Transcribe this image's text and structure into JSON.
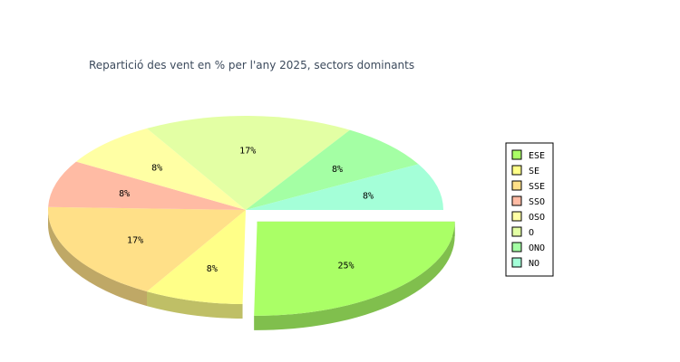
{
  "chart_data": {
    "type": "pie",
    "title": "Repartició des vent en % per l'any 2025, sectors dominants",
    "categories": [
      "ESE",
      "SE",
      "SSE",
      "SSO",
      "OSO",
      "O",
      "ONO",
      "NO"
    ],
    "values": [
      25,
      8,
      17,
      8,
      8,
      17,
      8,
      8
    ],
    "data_labels": [
      "25%",
      "8%",
      "17%",
      "8%",
      "8%",
      "17%",
      "8%",
      "8%"
    ],
    "colors": [
      "#aaff66",
      "#ffff88",
      "#ffe088",
      "#ffbba4",
      "#ffffa4",
      "#e3ffa4",
      "#a4ffa4",
      "#a4ffd8"
    ],
    "exploded": [
      "ESE"
    ],
    "legend_position": "right",
    "style": "3d"
  }
}
